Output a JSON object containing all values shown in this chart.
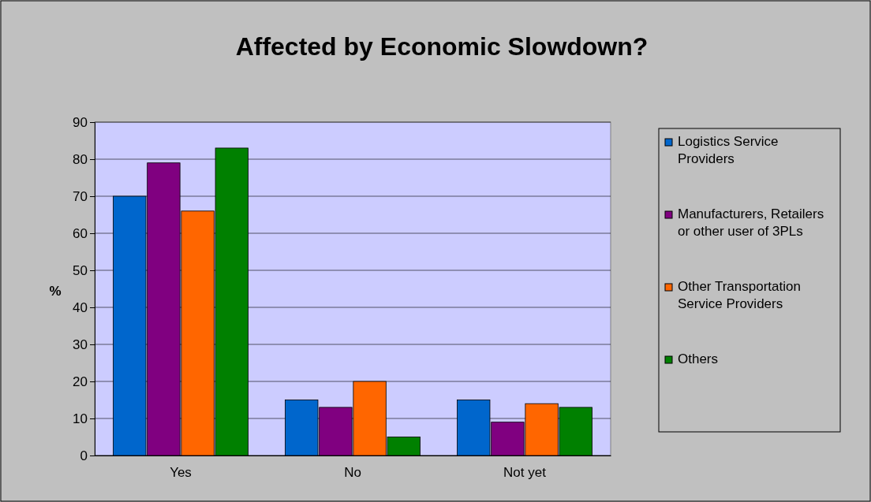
{
  "chart_data": {
    "type": "bar",
    "title": "Affected by Economic Slowdown?",
    "ylabel": "%",
    "categories": [
      "Yes",
      "No",
      "Not yet"
    ],
    "series": [
      {
        "name": "Logistics Service Providers",
        "color": "#0066cc",
        "values": [
          70,
          15,
          15
        ]
      },
      {
        "name": "Manufacturers, Retailers or other user of 3PLs",
        "color": "#800080",
        "values": [
          79,
          13,
          9
        ]
      },
      {
        "name": "Other Transportation Service Providers",
        "color": "#ff6600",
        "values": [
          66,
          20,
          14
        ]
      },
      {
        "name": "Others",
        "color": "#008000",
        "values": [
          83,
          5,
          13
        ]
      }
    ],
    "ylim": [
      0,
      90
    ],
    "yticks": [
      0,
      10,
      20,
      30,
      40,
      50,
      60,
      70,
      80,
      90
    ],
    "grid": "y",
    "legend": "right"
  }
}
